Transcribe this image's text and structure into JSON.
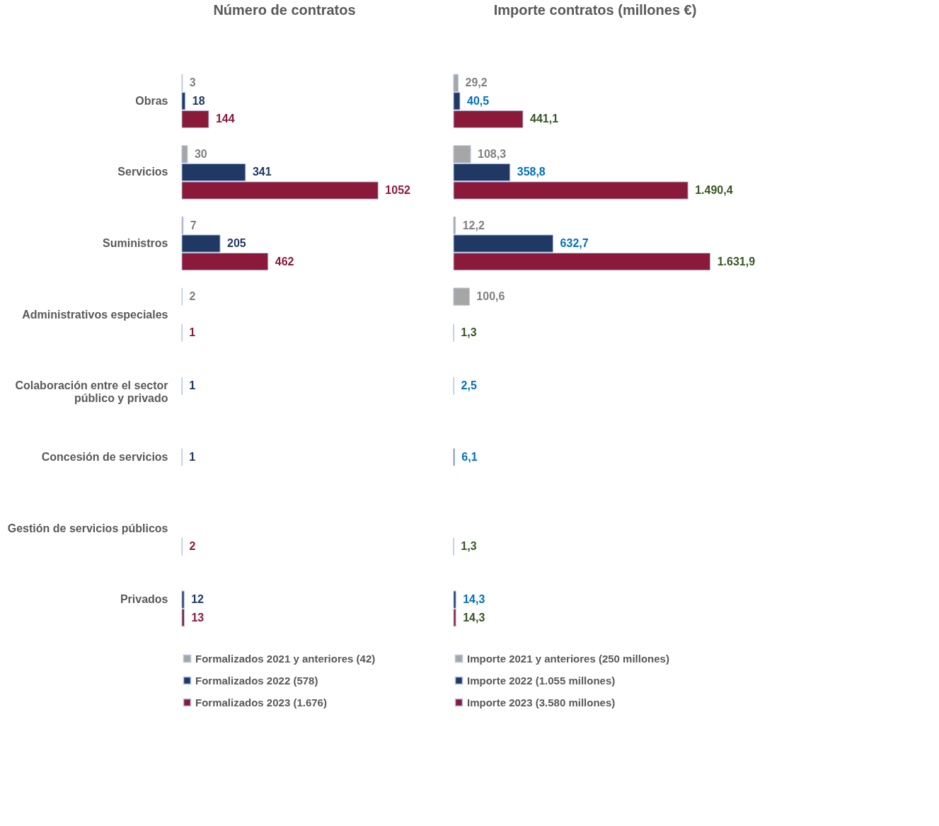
{
  "chart_data": [
    {
      "type": "bar",
      "orientation": "horizontal",
      "title": "Número de contratos",
      "categories": [
        "Obras",
        "Servicios",
        "Suministros",
        "Administrativos especiales",
        "Colaboración entre el sector público y privado",
        "Concesión de servicios",
        "Gestión de servicios públicos",
        "Privados"
      ],
      "data_labels": true,
      "legend": "bottom",
      "tick_labels": "y",
      "grid": false,
      "series": [
        {
          "name": "Formalizados 2021 y anteriores (42)",
          "color": "#a6a6a6",
          "values": [
            3,
            30,
            7,
            2,
            null,
            null,
            null,
            null
          ]
        },
        {
          "name": "Formalizados 2022 (578)",
          "color": "#1f3864",
          "values": [
            18,
            341,
            205,
            null,
            1,
            1,
            null,
            12
          ]
        },
        {
          "name": "Formalizados 2023 (1.676)",
          "color": "#8b1a3a",
          "values": [
            144,
            1052,
            462,
            1,
            null,
            null,
            2,
            13
          ]
        }
      ]
    },
    {
      "type": "bar",
      "orientation": "horizontal",
      "title": "Importe contratos (millones €)",
      "categories": [
        null,
        null,
        null,
        null,
        null,
        null,
        null,
        null
      ],
      "legend": "bottom",
      "tick_labels": false,
      "grid": false,
      "series": [
        {
          "name": "Importe 2021 y anteriores (250 millones)",
          "color": "#a6a6a6",
          "values": [
            29.2,
            108.3,
            12.2,
            100.6,
            null,
            null,
            null,
            null
          ],
          "value_labels": [
            "29,2",
            "108,3",
            "12,2",
            "100,6",
            null,
            null,
            null,
            null
          ]
        },
        {
          "name": "Importe 2022 (1.055 millones)",
          "color": "#1f3864",
          "values": [
            40.5,
            358.8,
            632.7,
            null,
            2.5,
            6.1,
            null,
            14.3
          ],
          "value_labels": [
            "40,5",
            "358,8",
            "632,7",
            null,
            "2,5",
            "6,1",
            null,
            "14,3"
          ]
        },
        {
          "name": "Importe 2023 (3.580 millones)",
          "color": "#8b1a3a",
          "values": [
            441.1,
            1490.4,
            1631.9,
            1.3,
            null,
            null,
            1.3,
            14.3
          ],
          "value_labels": [
            "441,1",
            "1.490,4",
            "1.631,9",
            "1,3",
            null,
            null,
            "1,3",
            "14,3"
          ]
        }
      ]
    }
  ]
}
